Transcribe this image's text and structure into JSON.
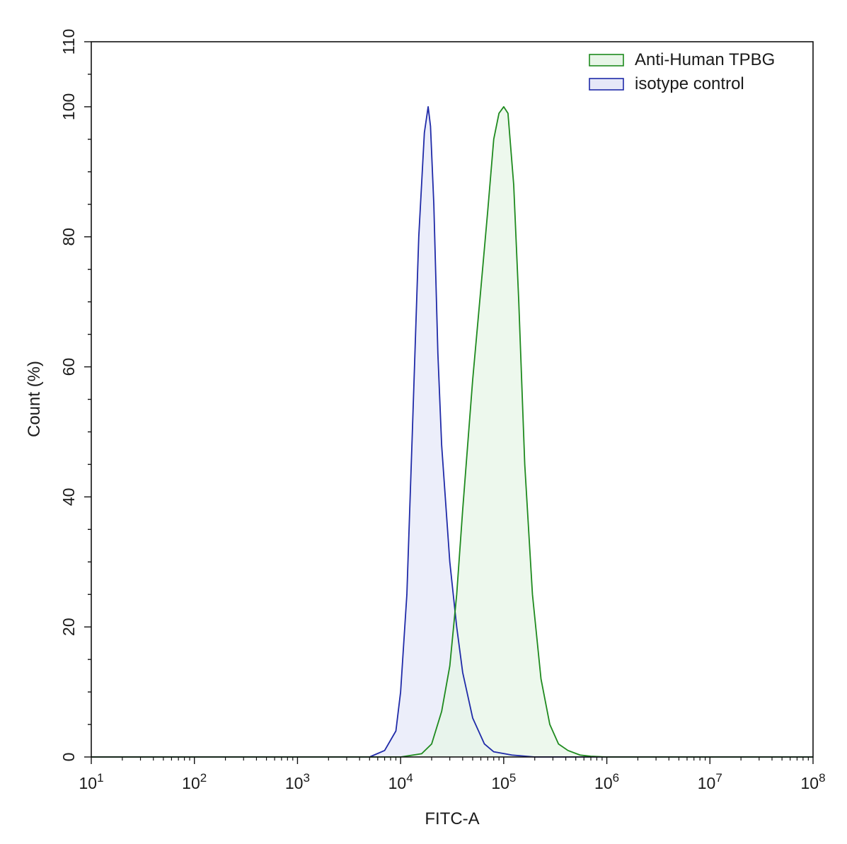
{
  "chart_data": {
    "type": "area",
    "xlabel": "FITC-A",
    "ylabel": "Count  (%)",
    "x_scale": "log",
    "xlim": [
      10,
      100000000
    ],
    "ylim": [
      0,
      110
    ],
    "grid": false,
    "legend_position": "top-right",
    "x_ticks": [
      {
        "base": "10",
        "exp": "1"
      },
      {
        "base": "10",
        "exp": "2"
      },
      {
        "base": "10",
        "exp": "3"
      },
      {
        "base": "10",
        "exp": "4"
      },
      {
        "base": "10",
        "exp": "5"
      },
      {
        "base": "10",
        "exp": "6"
      },
      {
        "base": "10",
        "exp": "7"
      },
      {
        "base": "10",
        "exp": "8"
      }
    ],
    "y_ticks": [
      "0",
      "20",
      "40",
      "60",
      "80",
      "100",
      "110"
    ],
    "series": [
      {
        "name": "Anti-Human TPBG",
        "stroke": "#1e8a1e",
        "fill": "#e7f5e7",
        "x": [
          10,
          10000,
          16000,
          20000,
          25000,
          30000,
          35000,
          40000,
          50000,
          60000,
          70000,
          80000,
          90000,
          100000,
          110000,
          125000,
          140000,
          160000,
          190000,
          230000,
          280000,
          340000,
          420000,
          550000,
          700000,
          1000000,
          3000000,
          100000000
        ],
        "y": [
          0,
          0,
          0.5,
          2,
          7,
          14,
          25,
          38,
          58,
          72,
          84,
          95,
          99,
          100,
          99,
          88,
          70,
          45,
          25,
          12,
          5,
          2,
          1,
          0.3,
          0.1,
          0,
          0,
          0
        ]
      },
      {
        "name": "isotype control",
        "stroke": "#1f2aa8",
        "fill": "#e6e8f8",
        "x": [
          10,
          5000,
          7000,
          9000,
          10000,
          11500,
          13000,
          15000,
          17000,
          18500,
          19500,
          21000,
          23000,
          25000,
          30000,
          35000,
          40000,
          50000,
          65000,
          80000,
          120000,
          200000,
          100000000
        ],
        "y": [
          0,
          0,
          1,
          4,
          10,
          25,
          50,
          80,
          96,
          100,
          97,
          85,
          62,
          48,
          30,
          20,
          13,
          6,
          2,
          0.8,
          0.3,
          0,
          0
        ]
      }
    ]
  }
}
